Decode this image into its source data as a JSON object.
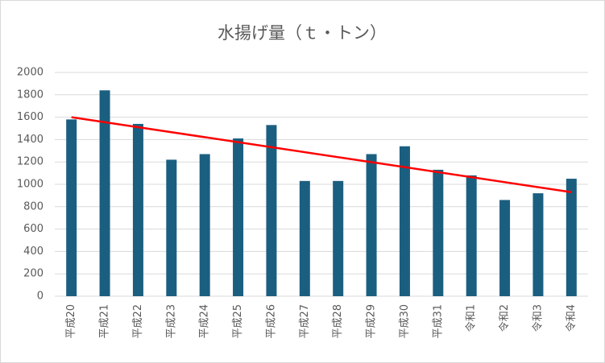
{
  "chart_data": {
    "type": "bar",
    "title": "水揚げ量（ｔ・トン）",
    "categories": [
      "平成20",
      "平成21",
      "平成22",
      "平成23",
      "平成24",
      "平成25",
      "平成26",
      "平成27",
      "平成28",
      "平成29",
      "平成30",
      "平成31",
      "令和1",
      "令和2",
      "令和3",
      "令和4"
    ],
    "values": [
      1580,
      1840,
      1540,
      1220,
      1270,
      1410,
      1530,
      1030,
      1030,
      1270,
      1340,
      1130,
      1080,
      860,
      920,
      1050
    ],
    "color": "#1b5f80",
    "trendline": {
      "color": "#ff0000",
      "values": [
        1600,
        930
      ]
    },
    "ylim": [
      0,
      2000
    ],
    "yticks": [
      0,
      200,
      400,
      600,
      800,
      1000,
      1200,
      1400,
      1600,
      1800,
      2000
    ],
    "grid": true
  }
}
